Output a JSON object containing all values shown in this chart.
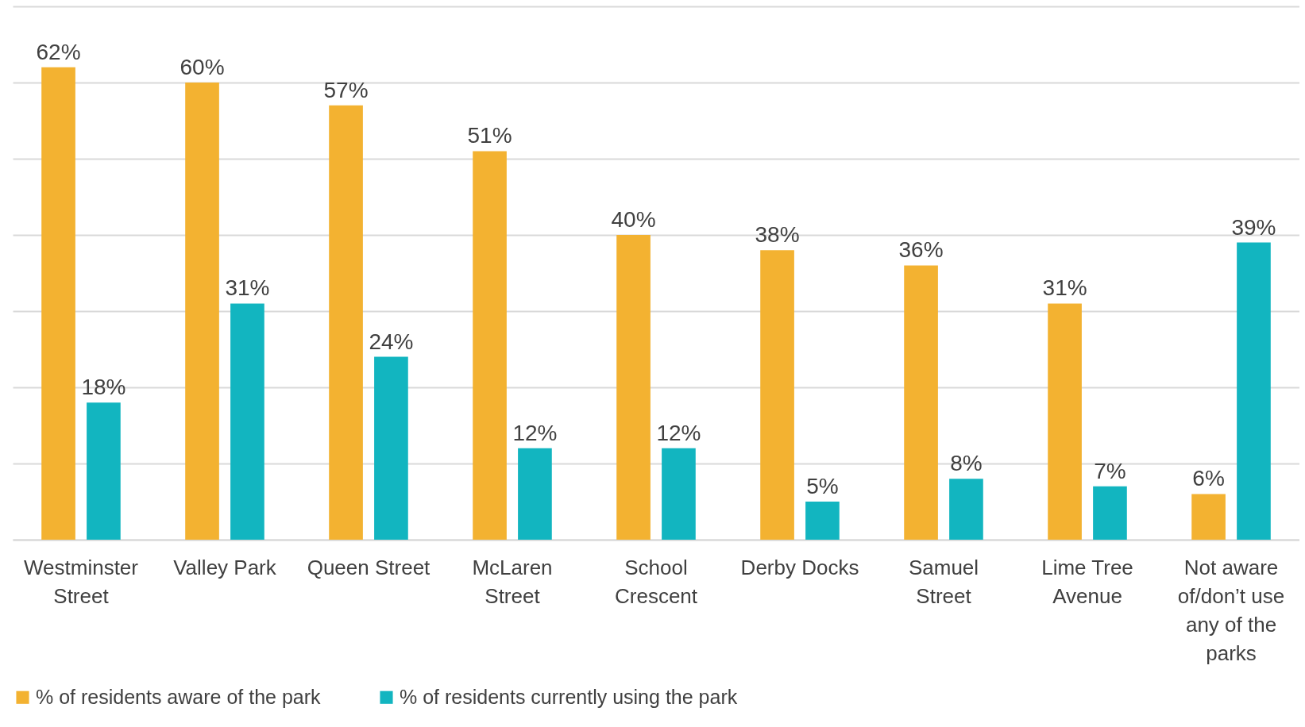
{
  "chart_data": {
    "type": "bar",
    "categories": [
      "Westminster Street",
      "Valley Park",
      "Queen Street",
      "McLaren Street",
      "School Crescent",
      "Derby Docks",
      "Samuel Street",
      "Lime Tree Avenue",
      "Not aware of/don’t use any of the parks"
    ],
    "series": [
      {
        "name": "% of residents aware of the park",
        "color": "#f3b231",
        "values": [
          62,
          60,
          57,
          51,
          40,
          38,
          36,
          31,
          6
        ],
        "value_labels": [
          "62%",
          "60%",
          "57%",
          "51%",
          "40%",
          "38%",
          "36%",
          "31%",
          "6%"
        ]
      },
      {
        "name": "% of residents currently using the park",
        "color": "#12b5c0",
        "values": [
          18,
          31,
          24,
          12,
          12,
          5,
          8,
          7,
          39
        ],
        "value_labels": [
          "18%",
          "31%",
          "24%",
          "12%",
          "12%",
          "5%",
          "8%",
          "7%",
          "39%"
        ]
      }
    ],
    "ylim": [
      0,
      70
    ],
    "yticks": [
      {
        "value": 0,
        "label": null
      },
      {
        "value": 10,
        "label": null
      },
      {
        "value": 20,
        "label": null
      },
      {
        "value": 30,
        "label": null
      },
      {
        "value": 40,
        "label": null
      },
      {
        "value": 50,
        "label": null
      },
      {
        "value": 60,
        "label": null
      },
      {
        "value": 70,
        "label": null
      }
    ],
    "tick_labels": "x",
    "grid": "y",
    "legend": "bottom"
  }
}
